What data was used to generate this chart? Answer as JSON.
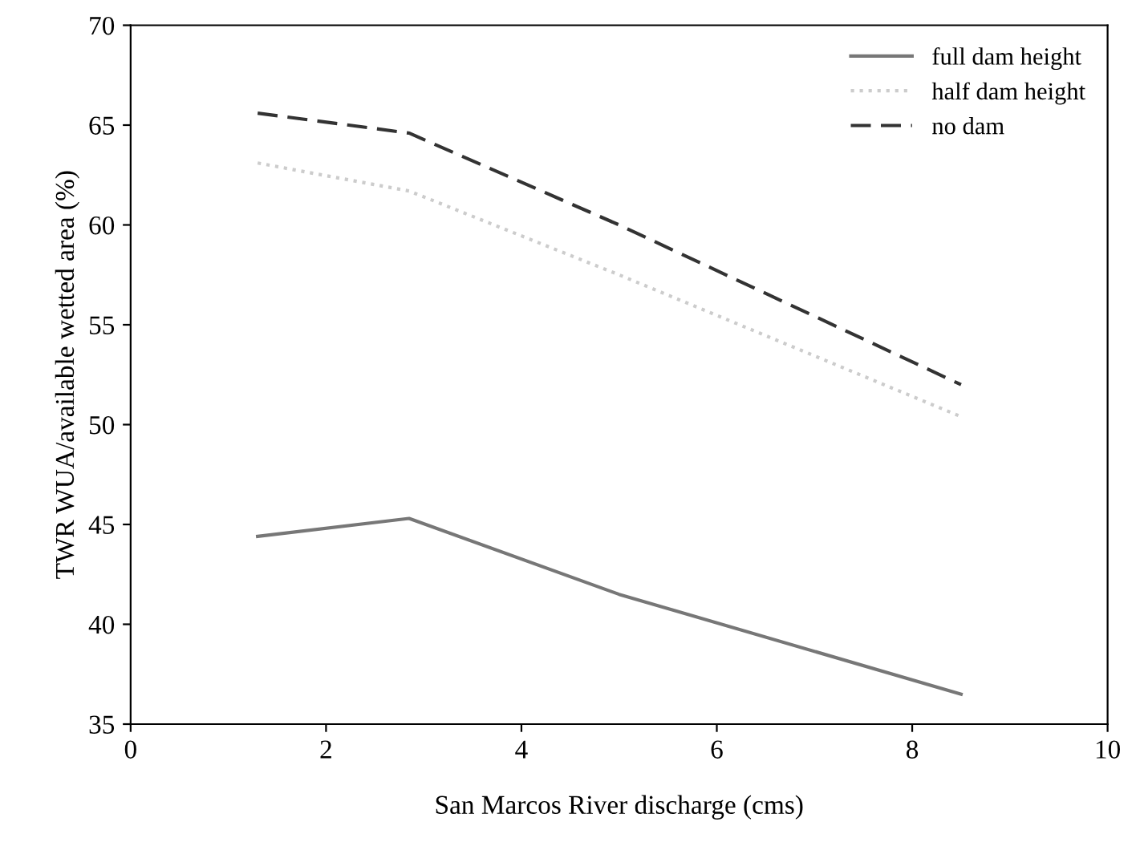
{
  "chart_data": {
    "type": "line",
    "xlabel": "San Marcos River discharge (cms)",
    "ylabel": "TWR WUA/available wetted area (%)",
    "x": [
      1.3,
      2.85,
      5.0,
      8.5
    ],
    "series": [
      {
        "name": "full dam height",
        "color": "#777777",
        "values": [
          44.4,
          45.3,
          41.5,
          36.5
        ],
        "line_style": "solid"
      },
      {
        "name": "half dam height",
        "color": "#cccccc",
        "values": [
          63.1,
          61.7,
          57.5,
          50.4
        ],
        "line_style": "dotted"
      },
      {
        "name": "no dam",
        "color": "#333333",
        "values": [
          65.6,
          64.6,
          60.0,
          52.0
        ],
        "line_style": "dashed"
      }
    ],
    "xlim": [
      0,
      10
    ],
    "xticks": [
      0,
      2,
      4,
      6,
      8,
      10
    ],
    "ylim": [
      35,
      70
    ],
    "yticks": [
      35,
      40,
      45,
      50,
      55,
      60,
      65,
      70
    ],
    "grid": false,
    "legend": "top right",
    "marker": "none"
  }
}
